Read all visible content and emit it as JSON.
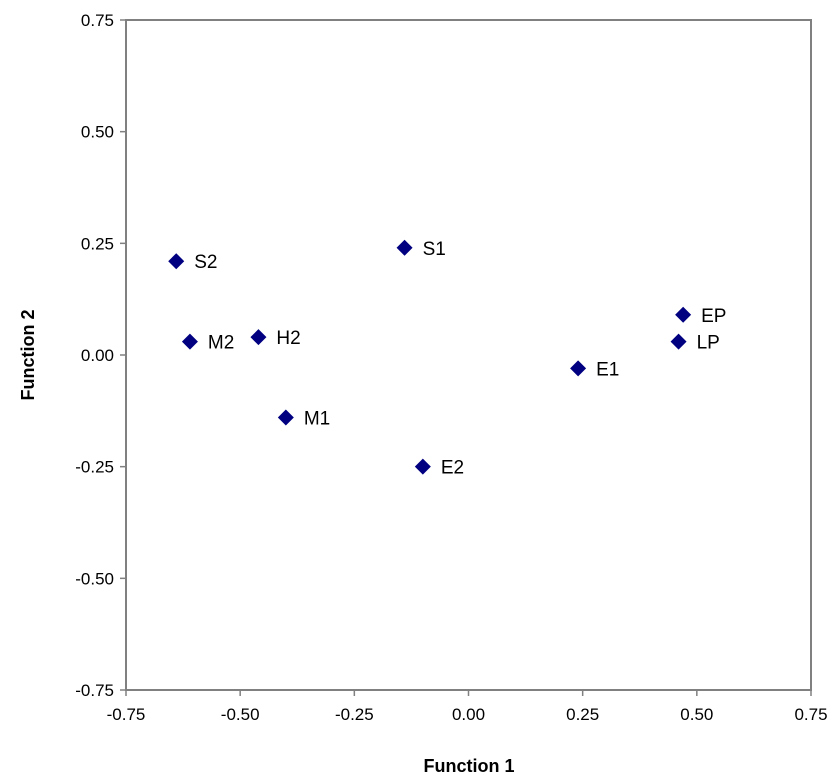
{
  "chart_data": {
    "type": "scatter",
    "title": "",
    "xlabel": "Function 1",
    "ylabel": "Function 2",
    "xlim": [
      -0.75,
      0.75
    ],
    "ylim": [
      -0.75,
      0.75
    ],
    "x_ticks": [
      "-0.75",
      "-0.50",
      "-0.25",
      "0.00",
      "0.25",
      "0.50",
      "0.75"
    ],
    "y_ticks": [
      "0.75",
      "0.50",
      "0.25",
      "0.00",
      "-0.25",
      "-0.50",
      "-0.75"
    ],
    "grid": false,
    "legend": "none",
    "marker": "diamond",
    "marker_color": "#000080",
    "points": [
      {
        "label": "S2",
        "x": -0.64,
        "y": 0.21
      },
      {
        "label": "S1",
        "x": -0.14,
        "y": 0.24
      },
      {
        "label": "M2",
        "x": -0.61,
        "y": 0.03
      },
      {
        "label": "H2",
        "x": -0.46,
        "y": 0.04
      },
      {
        "label": "M1",
        "x": -0.4,
        "y": -0.14
      },
      {
        "label": "E2",
        "x": -0.1,
        "y": -0.25
      },
      {
        "label": "E1",
        "x": 0.24,
        "y": -0.03
      },
      {
        "label": "EP",
        "x": 0.47,
        "y": 0.09
      },
      {
        "label": "LP",
        "x": 0.46,
        "y": 0.03
      }
    ]
  }
}
